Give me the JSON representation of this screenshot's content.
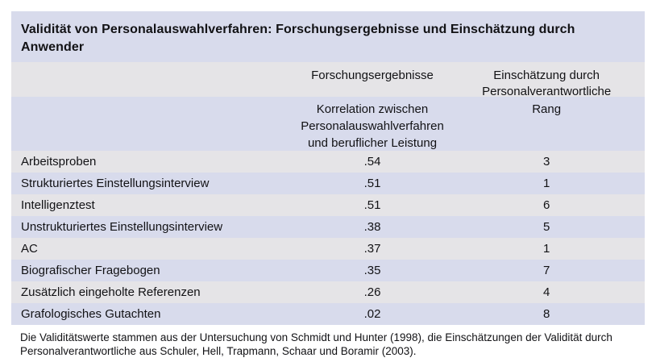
{
  "table": {
    "title": "Validität von Personalauswahlverfahren: Forschungsergebnisse und Einschätzung durch\nAnwender",
    "column_groups": {
      "research": "Forschungsergebnisse",
      "assessment": "Einschätzung durch\nPersonalverantwortliche"
    },
    "sub_headers": {
      "correlation": "Korrelation zwischen\nPersonalauswahlverfahren\nund beruflicher Leistung",
      "rank": "Rang"
    },
    "rows": [
      {
        "method": "Arbeitsproben",
        "correlation": ".54",
        "rank": "3"
      },
      {
        "method": "Strukturiertes Einstellungsinterview",
        "correlation": ".51",
        "rank": "1"
      },
      {
        "method": "Intelligenztest",
        "correlation": ".51",
        "rank": "6"
      },
      {
        "method": "Unstrukturiertes Einstellungsinterview",
        "correlation": ".38",
        "rank": "5"
      },
      {
        "method": "AC",
        "correlation": ".37",
        "rank": "1"
      },
      {
        "method": "Biografischer Fragebogen",
        "correlation": ".35",
        "rank": "7"
      },
      {
        "method": "Zusätzlich eingeholte Referenzen",
        "correlation": ".26",
        "rank": "4"
      },
      {
        "method": "Grafologisches Gutachten",
        "correlation": ".02",
        "rank": "8"
      }
    ],
    "footnote_lines": [
      "Die Validitätswerte stammen aus der Untersuchung von Schmidt und Hunter (1998), die Einschätzungen der Validität durch",
      "Personalverantwortliche aus Schuler, Hell, Trapmann, Schaar und Boramir (2003)."
    ]
  },
  "colors": {
    "lavender_band": "#d8dbec",
    "gray_band": "#e5e4e7",
    "text": "#121215",
    "background": "#ffffff"
  }
}
